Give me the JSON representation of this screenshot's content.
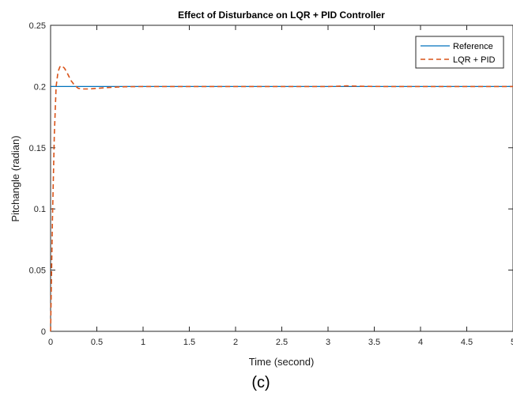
{
  "chart_data": {
    "type": "line",
    "title": "Effect of Disturbance on LQR + PID Controller",
    "xlabel": "Time (second)",
    "ylabel": "Pitchangle (radian)",
    "caption": "(c)",
    "xlim": [
      0,
      5
    ],
    "ylim": [
      0,
      0.25
    ],
    "xticks": [
      0,
      0.5,
      1,
      1.5,
      2,
      2.5,
      3,
      3.5,
      4,
      4.5,
      5
    ],
    "xtick_labels": [
      "0",
      "0.5",
      "1",
      "1.5",
      "2",
      "2.5",
      "3",
      "3.5",
      "4",
      "4.5",
      "5"
    ],
    "yticks": [
      0,
      0.05,
      0.1,
      0.15,
      0.2,
      0.25
    ],
    "ytick_labels": [
      "0",
      "0.05",
      "0.1",
      "0.15",
      "0.2",
      "0.25"
    ],
    "grid": false,
    "legend_position": "top-right",
    "series": [
      {
        "name": "Reference",
        "color": "#0072BD",
        "style": "solid",
        "x": [
          0,
          5
        ],
        "y": [
          0.2,
          0.2
        ]
      },
      {
        "name": "LQR + PID",
        "color": "#D95319",
        "style": "dashed",
        "x": [
          0,
          0.02,
          0.04,
          0.06,
          0.08,
          0.1,
          0.12,
          0.15,
          0.18,
          0.22,
          0.26,
          0.3,
          0.35,
          0.4,
          0.45,
          0.5,
          0.6,
          0.7,
          0.8,
          0.9,
          1.0,
          1.2,
          1.5,
          2.0,
          2.5,
          3.0,
          3.1,
          3.2,
          3.3,
          3.4,
          3.6,
          4.0,
          4.5,
          5.0
        ],
        "y": [
          0,
          0.09,
          0.16,
          0.2,
          0.212,
          0.216,
          0.217,
          0.215,
          0.211,
          0.205,
          0.201,
          0.1985,
          0.198,
          0.198,
          0.1982,
          0.1985,
          0.199,
          0.1995,
          0.1998,
          0.1999,
          0.2,
          0.2,
          0.2,
          0.2,
          0.2,
          0.2,
          0.2002,
          0.2005,
          0.2003,
          0.2001,
          0.2,
          0.2,
          0.2,
          0.2
        ]
      }
    ]
  }
}
